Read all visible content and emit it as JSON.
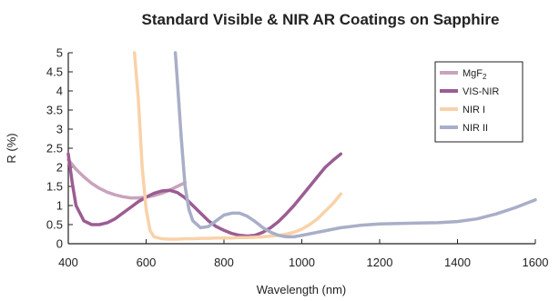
{
  "chart_data": {
    "type": "line",
    "title": "Standard Visible & NIR AR Coatings on Sapphire",
    "xlabel": "Wavelength (nm)",
    "ylabel": "R (%)",
    "xlim": [
      400,
      1600
    ],
    "ylim": [
      0,
      5
    ],
    "x_ticks": [
      400,
      600,
      800,
      1000,
      1200,
      1400,
      1600
    ],
    "y_ticks": [
      0,
      0.5,
      1,
      1.5,
      2,
      2.5,
      3,
      3.5,
      4,
      4.5,
      5
    ],
    "x_tick_labels": [
      "400",
      "600",
      "800",
      "1000",
      "1200",
      "1400",
      "1600"
    ],
    "y_tick_labels": [
      "0",
      "0.5",
      "1",
      "1.5",
      "2",
      "2.5",
      "3",
      "3.5",
      "4",
      "4.5",
      "5"
    ],
    "grid": false,
    "legend_position": "top-right",
    "series": [
      {
        "name": "MgF2",
        "legend_main": "MgF",
        "legend_sub": "2",
        "color": "#c9a3bb",
        "x": [
          400,
          420,
          440,
          460,
          480,
          500,
          520,
          540,
          560,
          580,
          600,
          620,
          640,
          660,
          680,
          700
        ],
        "y": [
          2.2,
          1.95,
          1.75,
          1.58,
          1.45,
          1.35,
          1.28,
          1.23,
          1.2,
          1.2,
          1.22,
          1.26,
          1.32,
          1.4,
          1.5,
          1.6
        ]
      },
      {
        "name": "VIS-NIR",
        "color": "#9b5d92",
        "x": [
          400,
          410,
          420,
          440,
          460,
          480,
          500,
          520,
          540,
          560,
          580,
          600,
          620,
          640,
          660,
          680,
          700,
          720,
          740,
          760,
          780,
          800,
          820,
          840,
          860,
          880,
          900,
          920,
          940,
          960,
          980,
          1000,
          1020,
          1040,
          1060,
          1080,
          1100
        ],
        "y": [
          2.35,
          1.6,
          1.0,
          0.6,
          0.5,
          0.5,
          0.55,
          0.65,
          0.8,
          0.95,
          1.1,
          1.22,
          1.32,
          1.38,
          1.4,
          1.34,
          1.2,
          1.0,
          0.8,
          0.6,
          0.45,
          0.35,
          0.27,
          0.22,
          0.2,
          0.22,
          0.3,
          0.42,
          0.58,
          0.78,
          1.0,
          1.25,
          1.5,
          1.75,
          2.0,
          2.18,
          2.35
        ]
      },
      {
        "name": "NIR I",
        "color": "#f9d2a9",
        "x": [
          570,
          580,
          590,
          600,
          610,
          620,
          640,
          660,
          680,
          700,
          720,
          740,
          760,
          780,
          800,
          820,
          840,
          860,
          880,
          900,
          920,
          940,
          960,
          980,
          1000,
          1020,
          1040,
          1060,
          1080,
          1100
        ],
        "y": [
          5.0,
          3.8,
          2.0,
          0.9,
          0.35,
          0.18,
          0.13,
          0.12,
          0.12,
          0.13,
          0.13,
          0.14,
          0.14,
          0.15,
          0.15,
          0.15,
          0.16,
          0.16,
          0.17,
          0.18,
          0.2,
          0.22,
          0.25,
          0.3,
          0.38,
          0.5,
          0.65,
          0.85,
          1.05,
          1.3
        ]
      },
      {
        "name": "NIR II",
        "color": "#a9aec8",
        "x": [
          675,
          680,
          690,
          700,
          710,
          720,
          740,
          760,
          780,
          800,
          820,
          840,
          860,
          880,
          900,
          920,
          940,
          960,
          980,
          1000,
          1050,
          1100,
          1150,
          1200,
          1250,
          1300,
          1350,
          1400,
          1450,
          1500,
          1550,
          1600
        ],
        "y": [
          5.0,
          4.3,
          2.8,
          1.5,
          0.9,
          0.6,
          0.42,
          0.45,
          0.6,
          0.75,
          0.8,
          0.8,
          0.72,
          0.58,
          0.42,
          0.3,
          0.22,
          0.18,
          0.18,
          0.22,
          0.32,
          0.42,
          0.48,
          0.52,
          0.53,
          0.54,
          0.55,
          0.58,
          0.65,
          0.78,
          0.95,
          1.15
        ]
      }
    ]
  }
}
